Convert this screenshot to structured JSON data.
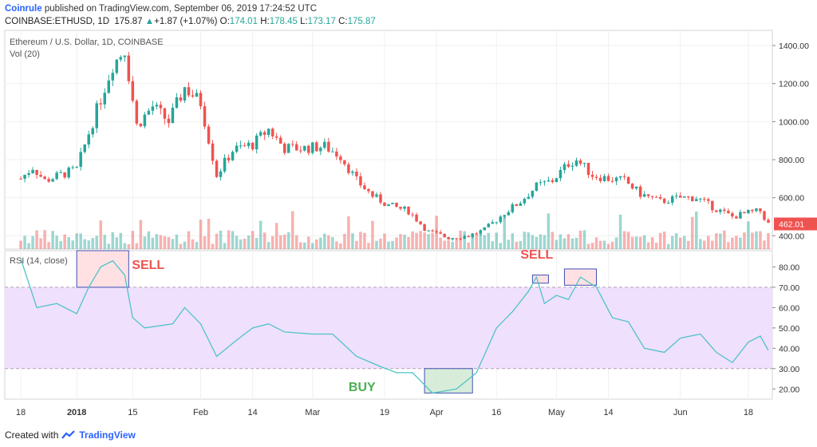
{
  "header": {
    "publisher": "Coinrule",
    "published_text": " published on TradingView.com, September 06, 2019 17:24:52 UTC",
    "symbol": "COINBASE:ETHUSD, 1D",
    "last": "175.87",
    "change": "+1.87 (+1.07%)",
    "o_label": "O:",
    "o": "174.01",
    "h_label": "H:",
    "h": "178.45",
    "l_label": "L:",
    "l": "173.17",
    "c_label": "C:",
    "c": "175.87"
  },
  "footer": {
    "created_with": "Created with",
    "brand": "TradingView"
  },
  "colors": {
    "up": "#26a69a",
    "down": "#ef5350",
    "rsi": "#4fc3c8",
    "band": "#efe0fd",
    "price_tag": "#ef5350"
  },
  "chart_data": [
    {
      "type": "candlestick",
      "title": "Ethereum / U.S. Dollar, 1D, COINBASE",
      "subtitle": "Vol (20)",
      "last_price_tag": "462.01",
      "y_ticks": [
        400,
        600,
        800,
        1000,
        1200,
        1400
      ],
      "y_tick_labels": [
        "400.00",
        "600.00",
        "800.00",
        "1000.00",
        "1200.00",
        "1400.00"
      ],
      "ylim": [
        330,
        1480
      ],
      "x_ticks": [
        "18",
        "2018",
        "15",
        "Feb",
        "14",
        "Mar",
        "19",
        "Apr",
        "16",
        "May",
        "14",
        "Jun",
        "18"
      ],
      "close_path": [
        [
          "2017-12-18",
          700
        ],
        [
          "2017-12-21",
          760
        ],
        [
          "2017-12-24",
          690
        ],
        [
          "2017-12-28",
          720
        ],
        [
          "2018-01-01",
          750
        ],
        [
          "2018-01-04",
          940
        ],
        [
          "2018-01-07",
          1120
        ],
        [
          "2018-01-10",
          1300
        ],
        [
          "2018-01-13",
          1380
        ],
        [
          "2018-01-16",
          980
        ],
        [
          "2018-01-20",
          1080
        ],
        [
          "2018-01-24",
          1000
        ],
        [
          "2018-01-28",
          1180
        ],
        [
          "2018-02-01",
          1100
        ],
        [
          "2018-02-05",
          720
        ],
        [
          "2018-02-09",
          850
        ],
        [
          "2018-02-14",
          880
        ],
        [
          "2018-02-18",
          960
        ],
        [
          "2018-02-22",
          860
        ],
        [
          "2018-02-27",
          860
        ],
        [
          "2018-03-04",
          870
        ],
        [
          "2018-03-08",
          820
        ],
        [
          "2018-03-12",
          690
        ],
        [
          "2018-03-16",
          610
        ],
        [
          "2018-03-20",
          560
        ],
        [
          "2018-03-25",
          530
        ],
        [
          "2018-03-30",
          420
        ],
        [
          "2018-04-04",
          390
        ],
        [
          "2018-04-09",
          400
        ],
        [
          "2018-04-13",
          430
        ],
        [
          "2018-04-18",
          520
        ],
        [
          "2018-04-22",
          580
        ],
        [
          "2018-04-26",
          660
        ],
        [
          "2018-04-30",
          690
        ],
        [
          "2018-05-04",
          780
        ],
        [
          "2018-05-06",
          800
        ],
        [
          "2018-05-10",
          720
        ],
        [
          "2018-05-14",
          700
        ],
        [
          "2018-05-18",
          690
        ],
        [
          "2018-05-22",
          620
        ],
        [
          "2018-05-27",
          580
        ],
        [
          "2018-06-01",
          600
        ],
        [
          "2018-06-05",
          600
        ],
        [
          "2018-06-10",
          540
        ],
        [
          "2018-06-14",
          500
        ],
        [
          "2018-06-18",
          520
        ],
        [
          "2018-06-21",
          530
        ],
        [
          "2018-06-23",
          462
        ]
      ]
    },
    {
      "type": "line",
      "title": "RSI (14, close)",
      "y_ticks": [
        20,
        30,
        40,
        50,
        60,
        70,
        80
      ],
      "y_tick_labels": [
        "20.00",
        "30.00",
        "40.00",
        "50.00",
        "60.00",
        "70.00",
        "80.00"
      ],
      "ylim": [
        15,
        88
      ],
      "band": [
        30,
        70
      ],
      "points": [
        [
          "2017-12-18",
          84
        ],
        [
          "2017-12-22",
          60
        ],
        [
          "2017-12-27",
          62
        ],
        [
          "2018-01-01",
          57
        ],
        [
          "2018-01-04",
          70
        ],
        [
          "2018-01-07",
          80
        ],
        [
          "2018-01-10",
          83
        ],
        [
          "2018-01-13",
          76
        ],
        [
          "2018-01-15",
          55
        ],
        [
          "2018-01-18",
          50
        ],
        [
          "2018-01-25",
          52
        ],
        [
          "2018-01-28",
          60
        ],
        [
          "2018-02-01",
          52
        ],
        [
          "2018-02-05",
          36
        ],
        [
          "2018-02-10",
          44
        ],
        [
          "2018-02-14",
          50
        ],
        [
          "2018-02-18",
          52
        ],
        [
          "2018-02-22",
          48
        ],
        [
          "2018-03-01",
          47
        ],
        [
          "2018-03-06",
          47
        ],
        [
          "2018-03-12",
          36
        ],
        [
          "2018-03-18",
          31
        ],
        [
          "2018-03-22",
          28
        ],
        [
          "2018-03-26",
          28
        ],
        [
          "2018-03-31",
          18
        ],
        [
          "2018-04-06",
          20
        ],
        [
          "2018-04-11",
          28
        ],
        [
          "2018-04-16",
          50
        ],
        [
          "2018-04-20",
          58
        ],
        [
          "2018-04-24",
          68
        ],
        [
          "2018-04-26",
          75
        ],
        [
          "2018-04-28",
          62
        ],
        [
          "2018-05-01",
          66
        ],
        [
          "2018-05-04",
          64
        ],
        [
          "2018-05-07",
          75
        ],
        [
          "2018-05-11",
          70
        ],
        [
          "2018-05-15",
          55
        ],
        [
          "2018-05-19",
          53
        ],
        [
          "2018-05-23",
          40
        ],
        [
          "2018-05-28",
          38
        ],
        [
          "2018-06-01",
          45
        ],
        [
          "2018-06-06",
          47
        ],
        [
          "2018-06-10",
          38
        ],
        [
          "2018-06-14",
          33
        ],
        [
          "2018-06-18",
          43
        ],
        [
          "2018-06-21",
          46
        ],
        [
          "2018-06-23",
          39
        ]
      ],
      "annotations": [
        {
          "text": "SELL",
          "color": "#ef5350",
          "box_from": "2018-01-01",
          "box_to": "2018-01-14",
          "box_ylim": [
            70,
            88
          ]
        },
        {
          "text": "SELL",
          "color": "#ef5350",
          "boxes": [
            [
              "2018-04-25",
              "2018-04-29",
              72,
              76
            ],
            [
              "2018-05-03",
              "2018-05-11",
              71,
              79
            ]
          ]
        },
        {
          "text": "BUY",
          "color": "#4caf50",
          "box_from": "2018-03-29",
          "box_to": "2018-04-10",
          "box_ylim": [
            18,
            30
          ]
        }
      ]
    }
  ]
}
